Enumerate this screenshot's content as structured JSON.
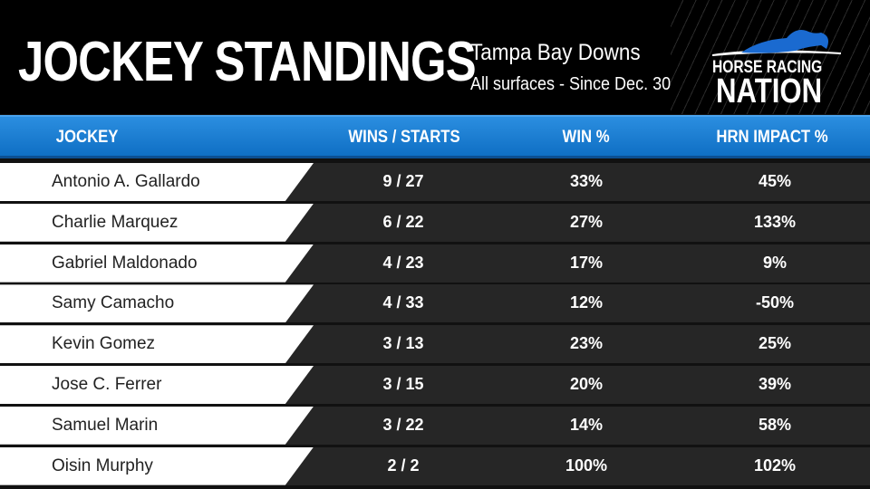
{
  "header": {
    "title": "JOCKEY STANDINGS",
    "track": "Tampa Bay Downs",
    "subtitle": "All surfaces - Since Dec. 30",
    "logo": {
      "line1": "HORSE RACING",
      "line2": "NATION"
    }
  },
  "columns": [
    "JOCKEY",
    "WINS / STARTS",
    "WIN %",
    "HRN IMPACT %"
  ],
  "rows": [
    {
      "jockey": "Antonio A. Gallardo",
      "wins_starts": "9 / 27",
      "win_pct": "33%",
      "impact": "45%"
    },
    {
      "jockey": "Charlie Marquez",
      "wins_starts": "6 / 22",
      "win_pct": "27%",
      "impact": "133%"
    },
    {
      "jockey": "Gabriel Maldonado",
      "wins_starts": "4 / 23",
      "win_pct": "17%",
      "impact": "9%"
    },
    {
      "jockey": "Samy Camacho",
      "wins_starts": "4 / 33",
      "win_pct": "12%",
      "impact": "-50%"
    },
    {
      "jockey": "Kevin Gomez",
      "wins_starts": "3 / 13",
      "win_pct": "23%",
      "impact": "25%"
    },
    {
      "jockey": "Jose C. Ferrer",
      "wins_starts": "3 / 15",
      "win_pct": "20%",
      "impact": "39%"
    },
    {
      "jockey": "Samuel Marin",
      "wins_starts": "3 / 22",
      "win_pct": "14%",
      "impact": "58%"
    },
    {
      "jockey": "Oisin Murphy",
      "wins_starts": "2 / 2",
      "win_pct": "100%",
      "impact": "102%"
    }
  ],
  "colors": {
    "accent": "#1a7fd4",
    "row_dark": "#262626"
  }
}
